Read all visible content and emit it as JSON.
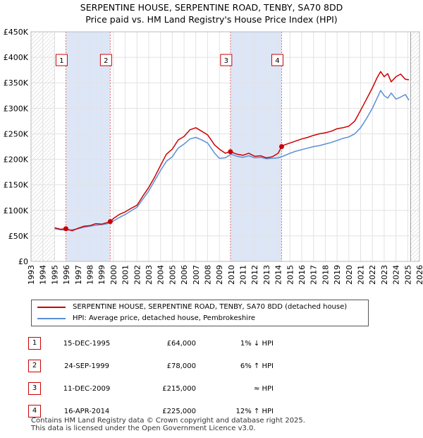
{
  "title_line1": "SERPENTINE HOUSE, SERPENTINE ROAD, TENBY, SA70 8DD",
  "title_line2": "Price paid vs. HM Land Registry's House Price Index (HPI)",
  "colors": {
    "property": "#cc0000",
    "hpi": "#5b8fd6",
    "shade": "#dde6f7",
    "marker_line": "#e07070"
  },
  "chart_data": {
    "type": "line",
    "xlim": [
      1993,
      2026
    ],
    "ylim": [
      0,
      450000
    ],
    "y_ticks": [
      0,
      50000,
      100000,
      150000,
      200000,
      250000,
      300000,
      350000,
      400000,
      450000
    ],
    "y_tick_labels": [
      "£0",
      "£50K",
      "£100K",
      "£150K",
      "£200K",
      "£250K",
      "£300K",
      "£350K",
      "£400K",
      "£450K"
    ],
    "x_ticks": [
      1993,
      1994,
      1995,
      1996,
      1997,
      1998,
      1999,
      2000,
      2001,
      2002,
      2003,
      2004,
      2005,
      2006,
      2007,
      2008,
      2009,
      2010,
      2011,
      2012,
      2013,
      2014,
      2015,
      2016,
      2017,
      2018,
      2019,
      2020,
      2021,
      2022,
      2023,
      2024,
      2025,
      2026
    ],
    "hatched_before": 1995.0,
    "hatched_after": 2025.25,
    "shaded_ranges": [
      [
        1995.96,
        1999.73
      ],
      [
        2009.94,
        2014.29
      ]
    ],
    "series": [
      {
        "name": "SERPENTINE HOUSE, SERPENTINE ROAD, TENBY, SA70 8DD (detached house)",
        "color": "#cc0000",
        "x": [
          1995.0,
          1995.5,
          1995.96,
          1996.5,
          1997.0,
          1997.5,
          1998.0,
          1998.5,
          1999.0,
          1999.73,
          2000.0,
          2000.5,
          2001.0,
          2001.5,
          2002.0,
          2002.5,
          2003.0,
          2003.5,
          2004.0,
          2004.5,
          2005.0,
          2005.5,
          2006.0,
          2006.5,
          2007.0,
          2007.5,
          2008.0,
          2008.3,
          2008.6,
          2009.0,
          2009.5,
          2009.94,
          2010.5,
          2011.0,
          2011.5,
          2012.0,
          2012.5,
          2013.0,
          2013.5,
          2014.0,
          2014.29,
          2014.5,
          2015.0,
          2015.5,
          2016.0,
          2016.5,
          2017.0,
          2017.5,
          2018.0,
          2018.5,
          2019.0,
          2019.5,
          2020.0,
          2020.5,
          2021.0,
          2021.5,
          2022.0,
          2022.4,
          2022.7,
          2023.0,
          2023.3,
          2023.6,
          2024.0,
          2024.4,
          2024.8,
          2025.1
        ],
        "values": [
          66000,
          63000,
          64000,
          60000,
          65000,
          69000,
          70000,
          74000,
          73000,
          78000,
          84000,
          92000,
          97000,
          104000,
          110000,
          128000,
          145000,
          165000,
          188000,
          210000,
          220000,
          238000,
          245000,
          258000,
          262000,
          255000,
          248000,
          238000,
          228000,
          220000,
          212000,
          215000,
          210000,
          208000,
          212000,
          206000,
          207000,
          203000,
          205000,
          212000,
          225000,
          228000,
          232000,
          236000,
          240000,
          243000,
          247000,
          250000,
          252000,
          255000,
          260000,
          262000,
          265000,
          275000,
          296000,
          318000,
          340000,
          360000,
          372000,
          362000,
          368000,
          352000,
          362000,
          367000,
          357000,
          356000
        ]
      },
      {
        "name": "HPI: Average price, detached house, Pembrokeshire",
        "color": "#5b8fd6",
        "x": [
          1995.0,
          1995.5,
          1996.0,
          1996.5,
          1997.0,
          1997.5,
          1998.0,
          1998.5,
          1999.0,
          1999.5,
          2000.0,
          2000.5,
          2001.0,
          2001.5,
          2002.0,
          2002.5,
          2003.0,
          2003.5,
          2004.0,
          2004.5,
          2005.0,
          2005.5,
          2006.0,
          2006.5,
          2007.0,
          2007.5,
          2008.0,
          2008.3,
          2008.6,
          2009.0,
          2009.5,
          2010.0,
          2010.5,
          2011.0,
          2011.5,
          2012.0,
          2012.5,
          2013.0,
          2013.5,
          2014.0,
          2014.5,
          2015.0,
          2015.5,
          2016.0,
          2016.5,
          2017.0,
          2017.5,
          2018.0,
          2018.5,
          2019.0,
          2019.5,
          2020.0,
          2020.5,
          2021.0,
          2021.5,
          2022.0,
          2022.4,
          2022.7,
          2023.0,
          2023.3,
          2023.6,
          2024.0,
          2024.4,
          2024.8,
          2025.1
        ],
        "values": [
          64000,
          62000,
          61000,
          62000,
          64000,
          67000,
          69000,
          71000,
          72000,
          74000,
          79000,
          86000,
          92000,
          99000,
          106000,
          122000,
          138000,
          158000,
          178000,
          196000,
          205000,
          222000,
          230000,
          240000,
          243000,
          238000,
          232000,
          222000,
          212000,
          202000,
          203000,
          210000,
          206000,
          204000,
          207000,
          203000,
          204000,
          201000,
          202000,
          203000,
          207000,
          212000,
          216000,
          219000,
          222000,
          225000,
          227000,
          230000,
          233000,
          237000,
          241000,
          244000,
          250000,
          262000,
          280000,
          300000,
          320000,
          335000,
          325000,
          320000,
          330000,
          318000,
          322000,
          327000,
          316000
        ]
      }
    ],
    "sales": [
      {
        "label": "1",
        "x": 1995.96,
        "value": 64000
      },
      {
        "label": "2",
        "x": 1999.73,
        "value": 78000
      },
      {
        "label": "3",
        "x": 2009.94,
        "value": 215000
      },
      {
        "label": "4",
        "x": 2014.29,
        "value": 225000
      }
    ]
  },
  "legend": {
    "property": "SERPENTINE HOUSE, SERPENTINE ROAD, TENBY, SA70 8DD (detached house)",
    "hpi": "HPI: Average price, detached house, Pembrokeshire"
  },
  "transactions": [
    {
      "num": "1",
      "date": "15-DEC-1995",
      "price": "£64,000",
      "hpi": "1% ↓ HPI"
    },
    {
      "num": "2",
      "date": "24-SEP-1999",
      "price": "£78,000",
      "hpi": "6% ↑ HPI"
    },
    {
      "num": "3",
      "date": "11-DEC-2009",
      "price": "£215,000",
      "hpi": "≈ HPI"
    },
    {
      "num": "4",
      "date": "16-APR-2014",
      "price": "£225,000",
      "hpi": "12% ↑ HPI"
    }
  ],
  "footer_line1": "Contains HM Land Registry data © Crown copyright and database right 2025.",
  "footer_line2": "This data is licensed under the Open Government Licence v3.0."
}
